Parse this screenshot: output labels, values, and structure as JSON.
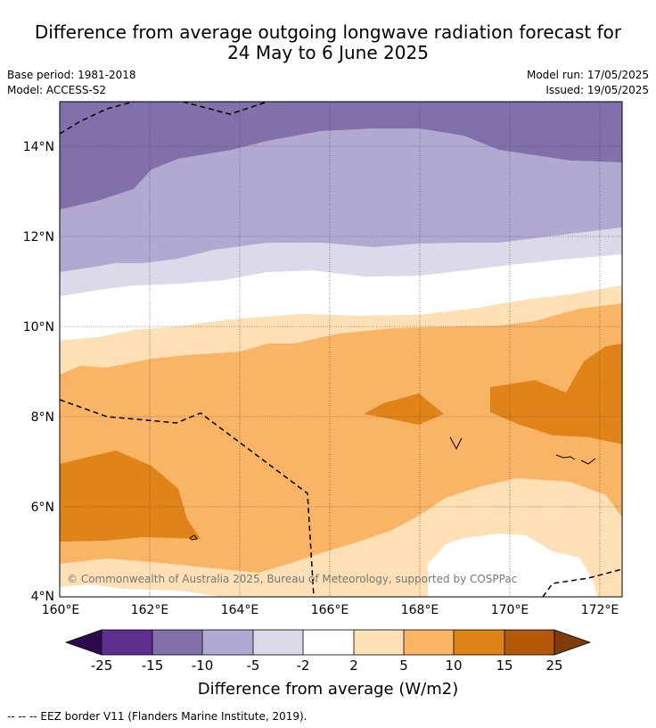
{
  "title": {
    "line1": "Difference from average outgoing longwave radiation forecast for",
    "line2": "24 May to 6 June 2025"
  },
  "meta": {
    "base_period": "Base period: 1981-2018",
    "model": "Model: ACCESS-S2",
    "model_run": "Model run: 17/05/2025",
    "issued": "Issued: 19/05/2025"
  },
  "map": {
    "x_ticks": [
      "160°E",
      "162°E",
      "164°E",
      "166°E",
      "168°E",
      "170°E",
      "172°E"
    ],
    "y_ticks": [
      "14°N",
      "12°N",
      "10°N",
      "8°N",
      "6°N",
      "4°N"
    ],
    "copyright": "© Commonwealth of Australia 2025, Bureau of Meteorology, supported by COSPPac",
    "extent": {
      "lon": [
        160,
        172.5
      ],
      "lat": [
        4,
        15
      ]
    },
    "grid": true
  },
  "colorbar": {
    "title": "Difference from average (W/m2)",
    "labels": [
      "-25",
      "-15",
      "-10",
      "-5",
      "-2",
      "2",
      "5",
      "10",
      "15",
      "25"
    ],
    "colors": {
      "below_-25": "#2d0a4e",
      "-25_-15": "#5e2e8f",
      "-15_-10": "#8270ab",
      "-10_-5": "#b1a9d1",
      "-5_-2": "#dadaeb",
      "-2_2": "#ffffff",
      "2_5": "#fde0b5",
      "5_10": "#f9b565",
      "10_15": "#e08419",
      "15_25": "#b35806",
      "above_25": "#7f3b08"
    }
  },
  "footer": "--  --  -- EEZ border V11 (Flanders Marine Institute, 2019)."
}
